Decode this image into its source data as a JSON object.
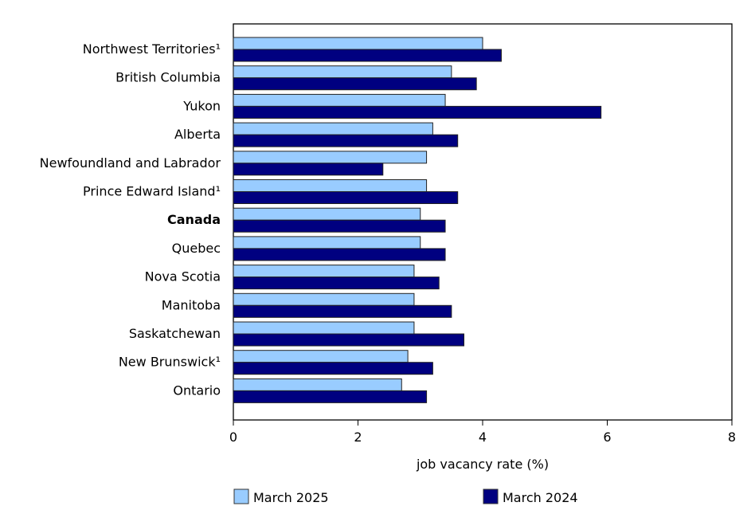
{
  "chart_data": {
    "type": "bar",
    "orientation": "horizontal",
    "categories": [
      "Northwest Territories¹",
      "British Columbia",
      "Yukon",
      "Alberta",
      "Newfoundland and Labrador",
      "Prince Edward Island¹",
      "Canada",
      "Quebec",
      "Nova Scotia",
      "Manitoba",
      "Saskatchewan",
      "New Brunswick¹",
      "Ontario"
    ],
    "bold_categories": [
      "Canada"
    ],
    "series": [
      {
        "name": "March 2025",
        "color": "#99CCFF",
        "values": [
          4.0,
          3.5,
          3.4,
          3.2,
          3.1,
          3.1,
          3.0,
          3.0,
          2.9,
          2.9,
          2.9,
          2.8,
          2.7
        ]
      },
      {
        "name": "March 2024",
        "color": "#000080",
        "values": [
          4.3,
          3.9,
          5.9,
          3.6,
          2.4,
          3.6,
          3.4,
          3.4,
          3.3,
          3.5,
          3.7,
          3.2,
          3.1
        ]
      }
    ],
    "xlabel": "job vacancy rate (%)",
    "xlim": [
      0,
      8
    ],
    "xticks": [
      "0",
      "2",
      "4",
      "6",
      "8"
    ],
    "grid": false,
    "legend_position": "bottom"
  }
}
